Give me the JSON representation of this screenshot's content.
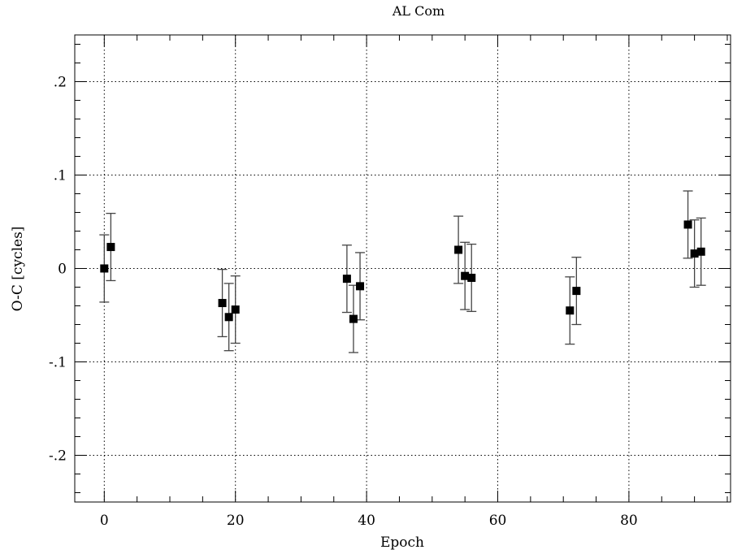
{
  "chart_data": {
    "type": "scatter",
    "title": "AL Com",
    "xlabel": "Epoch",
    "ylabel": "O-C [cycles]",
    "xlim": [
      -4.5,
      95.5
    ],
    "ylim": [
      -0.25,
      0.25
    ],
    "grid": true,
    "x_ticks": [
      {
        "value": 0,
        "label": "0"
      },
      {
        "value": 20,
        "label": "20"
      },
      {
        "value": 40,
        "label": "40"
      },
      {
        "value": 60,
        "label": "60"
      },
      {
        "value": 80,
        "label": "80"
      }
    ],
    "y_ticks": [
      {
        "value": 0.2,
        "label": ".2"
      },
      {
        "value": 0.1,
        "label": ".1"
      },
      {
        "value": 0,
        "label": "0"
      },
      {
        "value": -0.1,
        "label": "-.1"
      },
      {
        "value": -0.2,
        "label": "-.2"
      }
    ],
    "x_minor_step": 5,
    "y_minor_step": 0.02,
    "marker": "filled-square",
    "points": [
      {
        "x": 0,
        "y": 0.0,
        "err": 0.036
      },
      {
        "x": 1,
        "y": 0.023,
        "err": 0.036
      },
      {
        "x": 18,
        "y": -0.037,
        "err": 0.036
      },
      {
        "x": 19,
        "y": -0.052,
        "err": 0.036
      },
      {
        "x": 20,
        "y": -0.044,
        "err": 0.036
      },
      {
        "x": 37,
        "y": -0.011,
        "err": 0.036
      },
      {
        "x": 38,
        "y": -0.054,
        "err": 0.036
      },
      {
        "x": 39,
        "y": -0.019,
        "err": 0.036
      },
      {
        "x": 54,
        "y": 0.02,
        "err": 0.036
      },
      {
        "x": 55,
        "y": -0.008,
        "err": 0.036
      },
      {
        "x": 56,
        "y": -0.01,
        "err": 0.036
      },
      {
        "x": 71,
        "y": -0.045,
        "err": 0.036
      },
      {
        "x": 72,
        "y": -0.024,
        "err": 0.036
      },
      {
        "x": 89,
        "y": 0.047,
        "err": 0.036
      },
      {
        "x": 90,
        "y": 0.016,
        "err": 0.036
      },
      {
        "x": 91,
        "y": 0.018,
        "err": 0.036
      }
    ]
  }
}
